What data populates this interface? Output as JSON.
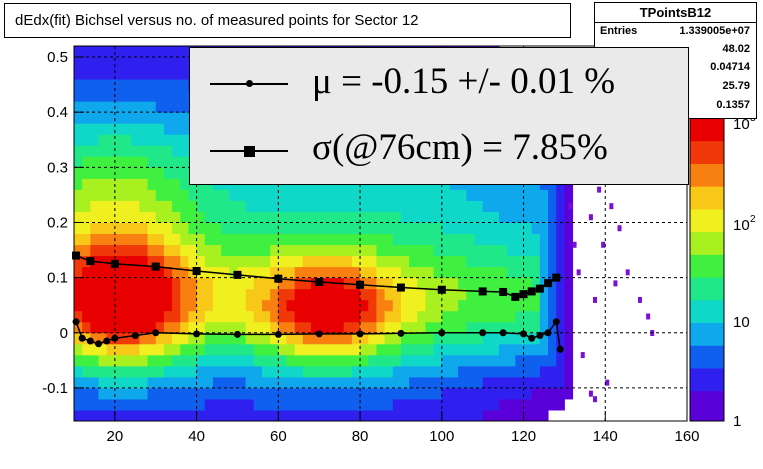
{
  "title": "dEdx(fit) Bichsel versus no. of measured points for Sector 12",
  "stats": {
    "name": "TPointsB12",
    "entries_label": "Entries",
    "rows": [
      "1.339005e+07",
      "48.02",
      "0.04714",
      "25.79",
      "0.1357"
    ]
  },
  "legend": {
    "mu_text": "μ  = -0.15 +/-  0.01 %",
    "sigma_text": "σ(@76cm) =  7.85%"
  },
  "chart_data": {
    "type": "heatmap",
    "title": "dEdx(fit) Bichsel versus no. of measured points for Sector 12",
    "xlim": [
      10,
      160
    ],
    "ylim": [
      -0.16,
      0.52
    ],
    "x_ticks": [
      "20",
      "40",
      "60",
      "80",
      "100",
      "120",
      "140",
      "160"
    ],
    "y_ticks": [
      "-0.1",
      "0",
      "0.1",
      "0.2",
      "0.3",
      "0.4",
      "0.5"
    ],
    "colorbar_ticks": [
      "1",
      "10",
      "10",
      "10"
    ],
    "colorbar_exponents": [
      "",
      "",
      "2",
      "3"
    ],
    "log_color_scale": true,
    "grid": true,
    "series": [
      {
        "marker": "circle",
        "points": [
          [
            10.5,
            0.02
          ],
          [
            12,
            -0.01
          ],
          [
            14,
            -0.015
          ],
          [
            16,
            -0.02
          ],
          [
            18,
            -0.015
          ],
          [
            20,
            -0.01
          ],
          [
            25,
            -0.005
          ],
          [
            30,
            0.0
          ],
          [
            40,
            -0.002
          ],
          [
            50,
            -0.003
          ],
          [
            60,
            -0.003
          ],
          [
            70,
            -0.002
          ],
          [
            80,
            -0.002
          ],
          [
            90,
            -0.001
          ],
          [
            100,
            0.0
          ],
          [
            110,
            0.0
          ],
          [
            115,
            0.0
          ],
          [
            120,
            -0.002
          ],
          [
            122,
            -0.01
          ],
          [
            124,
            -0.005
          ],
          [
            126,
            0.0
          ],
          [
            128,
            0.02
          ],
          [
            129,
            -0.03
          ]
        ]
      },
      {
        "marker": "square",
        "points": [
          [
            10.5,
            0.14
          ],
          [
            14,
            0.13
          ],
          [
            20,
            0.125
          ],
          [
            30,
            0.12
          ],
          [
            40,
            0.112
          ],
          [
            50,
            0.105
          ],
          [
            60,
            0.098
          ],
          [
            70,
            0.092
          ],
          [
            80,
            0.087
          ],
          [
            90,
            0.082
          ],
          [
            100,
            0.078
          ],
          [
            110,
            0.075
          ],
          [
            115,
            0.074
          ],
          [
            118,
            0.065
          ],
          [
            120,
            0.07
          ],
          [
            122,
            0.075
          ],
          [
            124,
            0.08
          ],
          [
            126,
            0.09
          ],
          [
            128,
            0.1
          ]
        ]
      }
    ]
  }
}
